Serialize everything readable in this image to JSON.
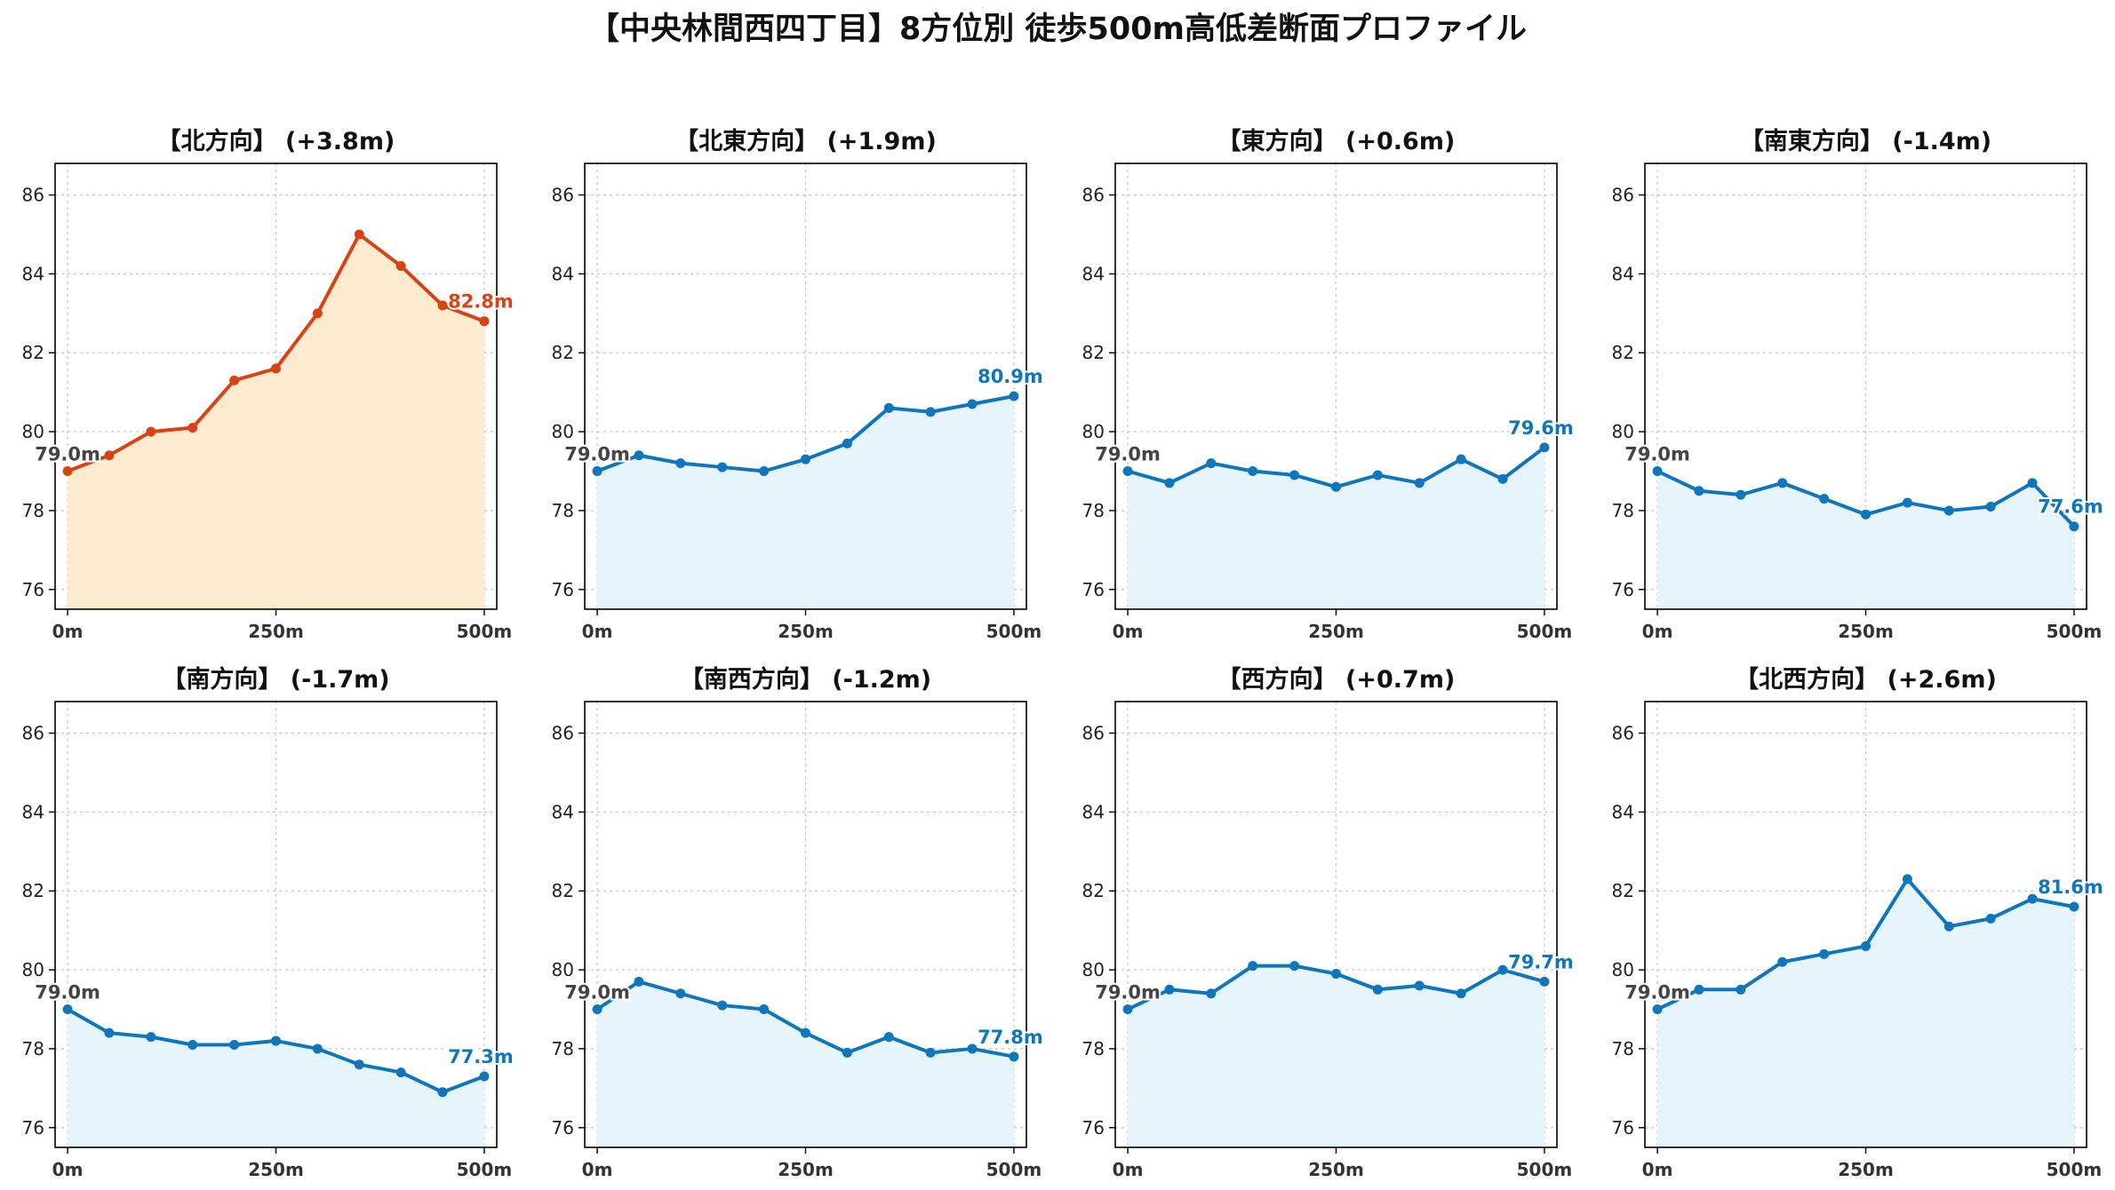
{
  "title": "【中央林間西四丁目】8方位別 徒歩500m高低差断面プロファイル",
  "colors": {
    "highlight_line": "#D84315",
    "highlight_fill": "#FDEBD0",
    "normal_line": "#0F75BC",
    "normal_fill": "#E6F5FC",
    "start_label": "#444444",
    "grid": "#C8C8C8"
  },
  "chart_data": [
    {
      "type": "area",
      "title": "【北方向】 (+3.8m)",
      "highlight": true,
      "x": [
        0,
        50,
        100,
        150,
        200,
        250,
        300,
        350,
        400,
        450,
        500
      ],
      "y": [
        79.0,
        79.4,
        80.0,
        80.1,
        81.3,
        81.6,
        83.0,
        85.0,
        84.2,
        83.2,
        82.8
      ],
      "start_label": "79.0m",
      "end_label": "82.8m",
      "xticks": [
        "0m",
        "250m",
        "500m"
      ],
      "yticks": [
        "76",
        "78",
        "80",
        "82",
        "84",
        "86"
      ],
      "ylim": [
        75.5,
        86.8
      ],
      "grid": true
    },
    {
      "type": "area",
      "title": "【北東方向】 (+1.9m)",
      "highlight": false,
      "x": [
        0,
        50,
        100,
        150,
        200,
        250,
        300,
        350,
        400,
        450,
        500
      ],
      "y": [
        79.0,
        79.4,
        79.2,
        79.1,
        79.0,
        79.3,
        79.7,
        80.6,
        80.5,
        80.7,
        80.9
      ],
      "start_label": "79.0m",
      "end_label": "80.9m",
      "xticks": [
        "0m",
        "250m",
        "500m"
      ],
      "yticks": [
        "76",
        "78",
        "80",
        "82",
        "84",
        "86"
      ],
      "ylim": [
        75.5,
        86.8
      ],
      "grid": true
    },
    {
      "type": "area",
      "title": "【東方向】 (+0.6m)",
      "highlight": false,
      "x": [
        0,
        50,
        100,
        150,
        200,
        250,
        300,
        350,
        400,
        450,
        500
      ],
      "y": [
        79.0,
        78.7,
        79.2,
        79.0,
        78.9,
        78.6,
        78.9,
        78.7,
        79.3,
        78.8,
        79.6
      ],
      "start_label": "79.0m",
      "end_label": "79.6m",
      "xticks": [
        "0m",
        "250m",
        "500m"
      ],
      "yticks": [
        "76",
        "78",
        "80",
        "82",
        "84",
        "86"
      ],
      "ylim": [
        75.5,
        86.8
      ],
      "grid": true
    },
    {
      "type": "area",
      "title": "【南東方向】 (-1.4m)",
      "highlight": false,
      "x": [
        0,
        50,
        100,
        150,
        200,
        250,
        300,
        350,
        400,
        450,
        500
      ],
      "y": [
        79.0,
        78.5,
        78.4,
        78.7,
        78.3,
        77.9,
        78.2,
        78.0,
        78.1,
        78.7,
        77.6
      ],
      "start_label": "79.0m",
      "end_label": "77.6m",
      "xticks": [
        "0m",
        "250m",
        "500m"
      ],
      "yticks": [
        "76",
        "78",
        "80",
        "82",
        "84",
        "86"
      ],
      "ylim": [
        75.5,
        86.8
      ],
      "grid": true
    },
    {
      "type": "area",
      "title": "【南方向】 (-1.7m)",
      "highlight": false,
      "x": [
        0,
        50,
        100,
        150,
        200,
        250,
        300,
        350,
        400,
        450,
        500
      ],
      "y": [
        79.0,
        78.4,
        78.3,
        78.1,
        78.1,
        78.2,
        78.0,
        77.6,
        77.4,
        76.9,
        77.3
      ],
      "start_label": "79.0m",
      "end_label": "77.3m",
      "xticks": [
        "0m",
        "250m",
        "500m"
      ],
      "yticks": [
        "76",
        "78",
        "80",
        "82",
        "84",
        "86"
      ],
      "ylim": [
        75.5,
        86.8
      ],
      "grid": true
    },
    {
      "type": "area",
      "title": "【南西方向】 (-1.2m)",
      "highlight": false,
      "x": [
        0,
        50,
        100,
        150,
        200,
        250,
        300,
        350,
        400,
        450,
        500
      ],
      "y": [
        79.0,
        79.7,
        79.4,
        79.1,
        79.0,
        78.4,
        77.9,
        78.3,
        77.9,
        78.0,
        77.8
      ],
      "start_label": "79.0m",
      "end_label": "77.8m",
      "xticks": [
        "0m",
        "250m",
        "500m"
      ],
      "yticks": [
        "76",
        "78",
        "80",
        "82",
        "84",
        "86"
      ],
      "ylim": [
        75.5,
        86.8
      ],
      "grid": true
    },
    {
      "type": "area",
      "title": "【西方向】 (+0.7m)",
      "highlight": false,
      "x": [
        0,
        50,
        100,
        150,
        200,
        250,
        300,
        350,
        400,
        450,
        500
      ],
      "y": [
        79.0,
        79.5,
        79.4,
        80.1,
        80.1,
        79.9,
        79.5,
        79.6,
        79.4,
        80.0,
        79.7
      ],
      "start_label": "79.0m",
      "end_label": "79.7m",
      "xticks": [
        "0m",
        "250m",
        "500m"
      ],
      "yticks": [
        "76",
        "78",
        "80",
        "82",
        "84",
        "86"
      ],
      "ylim": [
        75.5,
        86.8
      ],
      "grid": true
    },
    {
      "type": "area",
      "title": "【北西方向】 (+2.6m)",
      "highlight": false,
      "x": [
        0,
        50,
        100,
        150,
        200,
        250,
        300,
        350,
        400,
        450,
        500
      ],
      "y": [
        79.0,
        79.5,
        79.5,
        80.2,
        80.4,
        80.6,
        82.3,
        81.1,
        81.3,
        81.8,
        81.6
      ],
      "start_label": "79.0m",
      "end_label": "81.6m",
      "xticks": [
        "0m",
        "250m",
        "500m"
      ],
      "yticks": [
        "76",
        "78",
        "80",
        "82",
        "84",
        "86"
      ],
      "ylim": [
        75.5,
        86.8
      ],
      "grid": true
    }
  ]
}
